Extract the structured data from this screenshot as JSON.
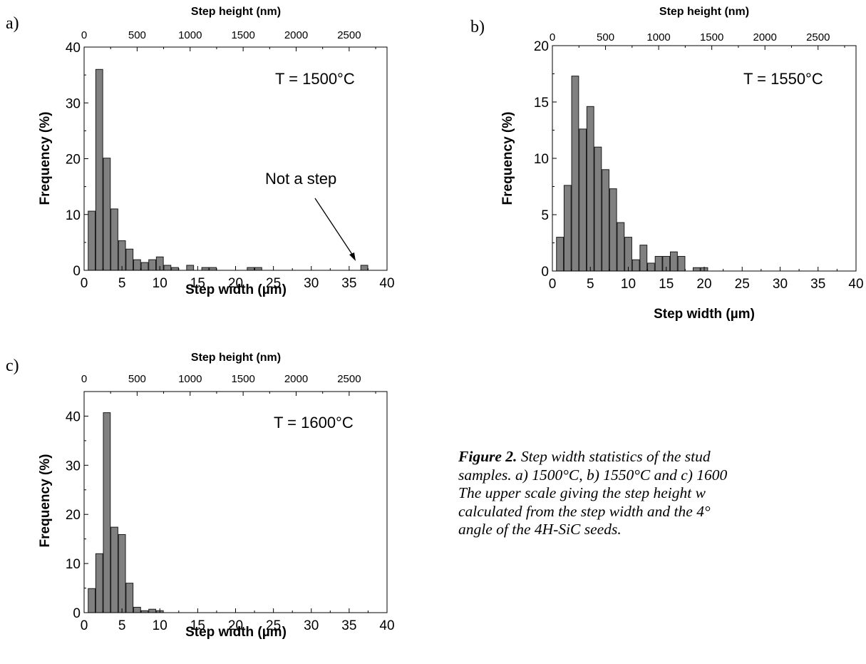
{
  "chart_data": [
    {
      "id": "a",
      "type": "bar",
      "panel_label": "a)",
      "annotation": "T = 1500°C",
      "callout": "Not a step",
      "xlabel": "Step width (µm)",
      "ylabel": "Frequency (%)",
      "top_xlabel": "Step height (nm)",
      "xlim": [
        0,
        40
      ],
      "ylim": [
        0,
        40
      ],
      "xticks": [
        "0",
        "5",
        "10",
        "15",
        "20",
        "25",
        "30",
        "35",
        "40"
      ],
      "yticks": [
        "0",
        "10",
        "20",
        "30",
        "40"
      ],
      "top_ticks": [
        "0",
        "500",
        "1000",
        "1500",
        "2000",
        "2500"
      ],
      "x": [
        1,
        2,
        3,
        4,
        5,
        6,
        7,
        8,
        9,
        10,
        11,
        12,
        14,
        16,
        17,
        22,
        23,
        37
      ],
      "values": [
        10.6,
        36.0,
        20.1,
        11.0,
        5.3,
        3.8,
        1.9,
        1.4,
        1.9,
        2.4,
        0.9,
        0.5,
        0.9,
        0.5,
        0.5,
        0.5,
        0.5,
        0.9
      ]
    },
    {
      "id": "b",
      "type": "bar",
      "panel_label": "b)",
      "annotation": "T = 1550°C",
      "xlabel": "Step width (µm)",
      "ylabel": "Frequency (%)",
      "top_xlabel": "Step height (nm)",
      "xlim": [
        0,
        40
      ],
      "ylim": [
        0,
        20
      ],
      "xticks": [
        "0",
        "5",
        "10",
        "15",
        "20",
        "25",
        "30",
        "35",
        "40"
      ],
      "yticks": [
        "0",
        "5",
        "10",
        "15",
        "20"
      ],
      "top_ticks": [
        "0",
        "500",
        "1000",
        "1500",
        "2000",
        "2500"
      ],
      "x": [
        1,
        2,
        3,
        4,
        5,
        6,
        7,
        8,
        9,
        10,
        11,
        12,
        13,
        14,
        15,
        16,
        17,
        19,
        20
      ],
      "values": [
        3.0,
        7.6,
        17.3,
        12.6,
        14.6,
        11.0,
        9.0,
        7.3,
        4.3,
        3.0,
        1.0,
        2.3,
        0.7,
        1.3,
        1.3,
        1.7,
        1.3,
        0.3,
        0.3
      ]
    },
    {
      "id": "c",
      "type": "bar",
      "panel_label": "c)",
      "annotation": "T = 1600°C",
      "xlabel": "Step width (µm)",
      "ylabel": "Frequency (%)",
      "top_xlabel": "Step height (nm)",
      "xlim": [
        0,
        40
      ],
      "ylim": [
        0,
        45
      ],
      "xticks": [
        "0",
        "5",
        "10",
        "15",
        "20",
        "25",
        "30",
        "35",
        "40"
      ],
      "yticks": [
        "0",
        "10",
        "20",
        "30",
        "40"
      ],
      "top_ticks": [
        "0",
        "500",
        "1000",
        "1500",
        "2000",
        "2500"
      ],
      "x": [
        1,
        2,
        3,
        4,
        5,
        6,
        7,
        8,
        9,
        10
      ],
      "values": [
        4.9,
        12.0,
        40.7,
        17.4,
        15.9,
        6.0,
        1.1,
        0.4,
        0.7,
        0.4
      ]
    }
  ],
  "caption": {
    "label": "Figure 2.",
    "line1": " Step width statistics of the stud",
    "line2": "samples. a) 1500°C, b) 1550°C and c) 1600",
    "line3": "The upper scale giving the step height w",
    "line4": "calculated from the step width and the 4°",
    "line5": "angle of the 4H-SiC seeds."
  }
}
